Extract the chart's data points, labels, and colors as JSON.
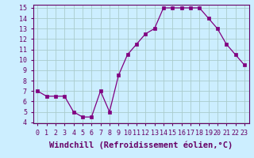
{
  "x": [
    0,
    1,
    2,
    3,
    4,
    5,
    6,
    7,
    8,
    9,
    10,
    11,
    12,
    13,
    14,
    15,
    16,
    17,
    18,
    19,
    20,
    21,
    22,
    23
  ],
  "y": [
    7.0,
    6.5,
    6.5,
    6.5,
    5.0,
    4.5,
    4.5,
    7.0,
    5.0,
    8.5,
    10.5,
    11.5,
    12.5,
    13.0,
    15.0,
    15.0,
    15.0,
    15.0,
    15.0,
    14.0,
    13.0,
    11.5,
    10.5,
    9.5
  ],
  "ylim": [
    4,
    15
  ],
  "yticks": [
    4,
    5,
    6,
    7,
    8,
    9,
    10,
    11,
    12,
    13,
    14,
    15
  ],
  "xticks": [
    0,
    1,
    2,
    3,
    4,
    5,
    6,
    7,
    8,
    9,
    10,
    11,
    12,
    13,
    14,
    15,
    16,
    17,
    18,
    19,
    20,
    21,
    22,
    23
  ],
  "xlabel": "Windchill (Refroidissement éolien,°C)",
  "line_color": "#800080",
  "marker": "s",
  "marker_size": 2.5,
  "bg_color": "#cceeff",
  "grid_color": "#aacccc",
  "tick_label_fontsize": 6,
  "xlabel_fontsize": 7.5
}
